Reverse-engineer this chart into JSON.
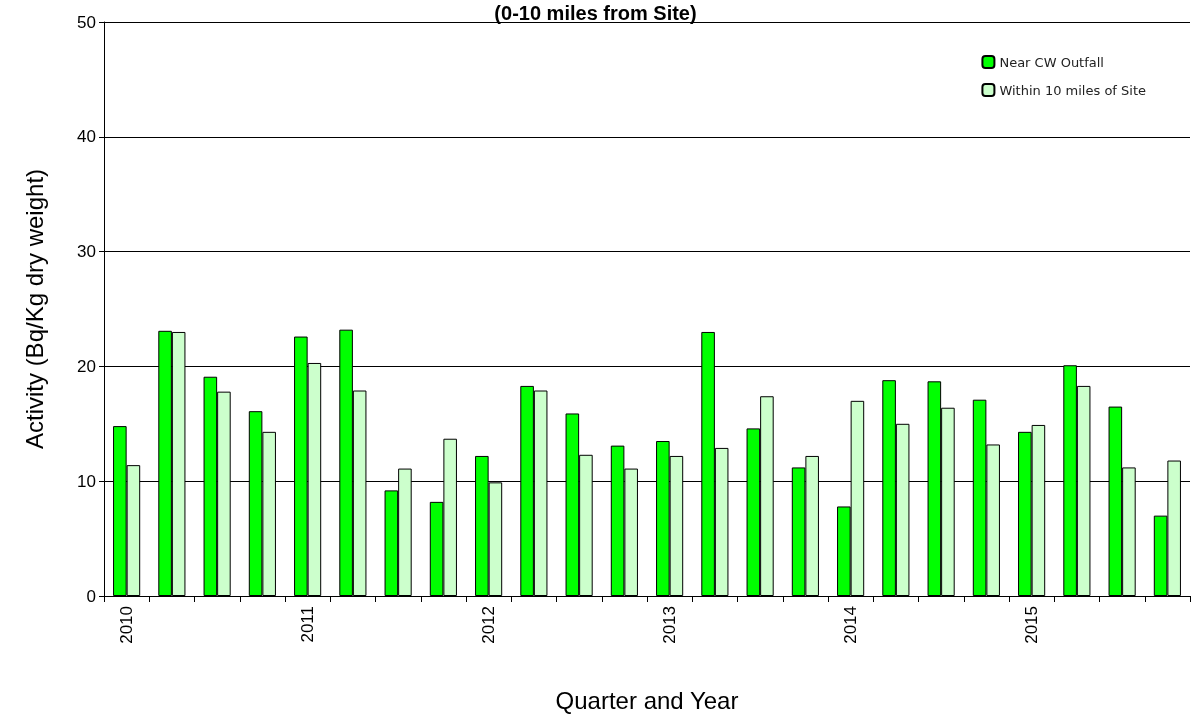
{
  "chart_data": {
    "type": "bar",
    "title": "(0-10 miles from Site)",
    "xlabel": "Quarter and Year",
    "ylabel": "Activity (Bq/Kg dry weight)",
    "categories": [
      "2010",
      null,
      null,
      null,
      "2011",
      null,
      null,
      null,
      "2012",
      null,
      null,
      null,
      "2013",
      null,
      null,
      null,
      "2014",
      null,
      null,
      null,
      "2015",
      null,
      null,
      null
    ],
    "series": [
      {
        "name": "Near CW Outfall",
        "color": "#00ff00",
        "values": [
          14.8,
          23.1,
          19.1,
          16.1,
          22.6,
          23.2,
          9.2,
          8.2,
          12.2,
          18.3,
          15.9,
          13.1,
          13.5,
          23.0,
          14.6,
          11.2,
          7.8,
          18.8,
          18.7,
          17.1,
          14.3,
          20.1,
          16.5,
          7.0
        ]
      },
      {
        "name": "Within 10 miles of Site",
        "color": "#ccffcc",
        "values": [
          11.4,
          23.0,
          17.8,
          14.3,
          20.3,
          17.9,
          11.1,
          13.7,
          9.9,
          17.9,
          12.3,
          11.1,
          12.2,
          12.9,
          17.4,
          12.2,
          17.0,
          15.0,
          16.4,
          13.2,
          14.9,
          18.3,
          11.2,
          11.8
        ]
      }
    ],
    "ylim": [
      0,
      50
    ],
    "yticks": [
      0,
      10,
      20,
      30,
      40,
      50
    ],
    "grid": "y",
    "legend": "top right"
  }
}
